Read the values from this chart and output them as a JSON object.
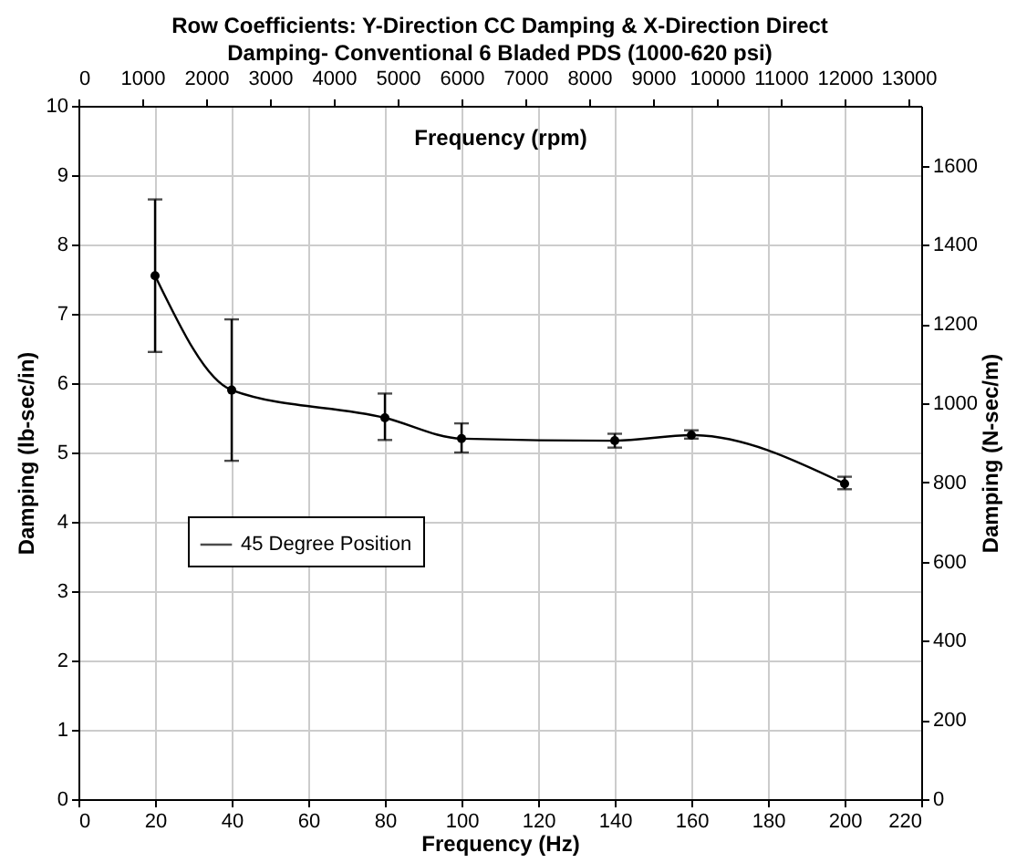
{
  "chart_data": {
    "type": "line",
    "title": "Row Coefficients: Y-Direction CC Damping & X-Direction Direct Damping- Conventional 6 Bladed PDS  (1000-620 psi)",
    "xlabel": "Frequency (Hz)",
    "ylabel": "Damping (lb-sec/in)",
    "y2label": "Damping (N-sec/m)",
    "x2label": "Frequency (rpm)",
    "x": [
      20,
      40,
      80,
      100,
      140,
      160,
      200
    ],
    "series": [
      {
        "name": "45 Degree Position",
        "color": "#000000",
        "values": [
          7.55,
          5.9,
          5.5,
          5.2,
          5.17,
          5.25,
          4.55
        ],
        "errors": [
          [
            6.45,
            8.65
          ],
          [
            4.88,
            6.92
          ],
          [
            5.18,
            5.85
          ],
          [
            5.0,
            5.42
          ],
          [
            5.07,
            5.27
          ],
          [
            5.2,
            5.32
          ],
          [
            4.47,
            4.65
          ]
        ]
      }
    ],
    "xlim": [
      0,
      220
    ],
    "xticks": [
      0,
      20,
      40,
      60,
      80,
      100,
      120,
      140,
      160,
      180,
      200,
      220
    ],
    "ylim": [
      0,
      10
    ],
    "yticks": [
      0,
      1,
      2,
      3,
      4,
      5,
      6,
      7,
      8,
      9,
      10
    ],
    "x2lim": [
      0,
      13200
    ],
    "x2ticks": [
      0,
      1000,
      2000,
      3000,
      4000,
      5000,
      6000,
      7000,
      8000,
      9000,
      10000,
      11000,
      12000,
      13000
    ],
    "y2lim": [
      0,
      1751
    ],
    "y2ticks": [
      0,
      200,
      400,
      600,
      800,
      1000,
      1200,
      1400,
      1600
    ],
    "grid": true,
    "legend": "left",
    "marker": "circle",
    "line_style": "solid"
  }
}
